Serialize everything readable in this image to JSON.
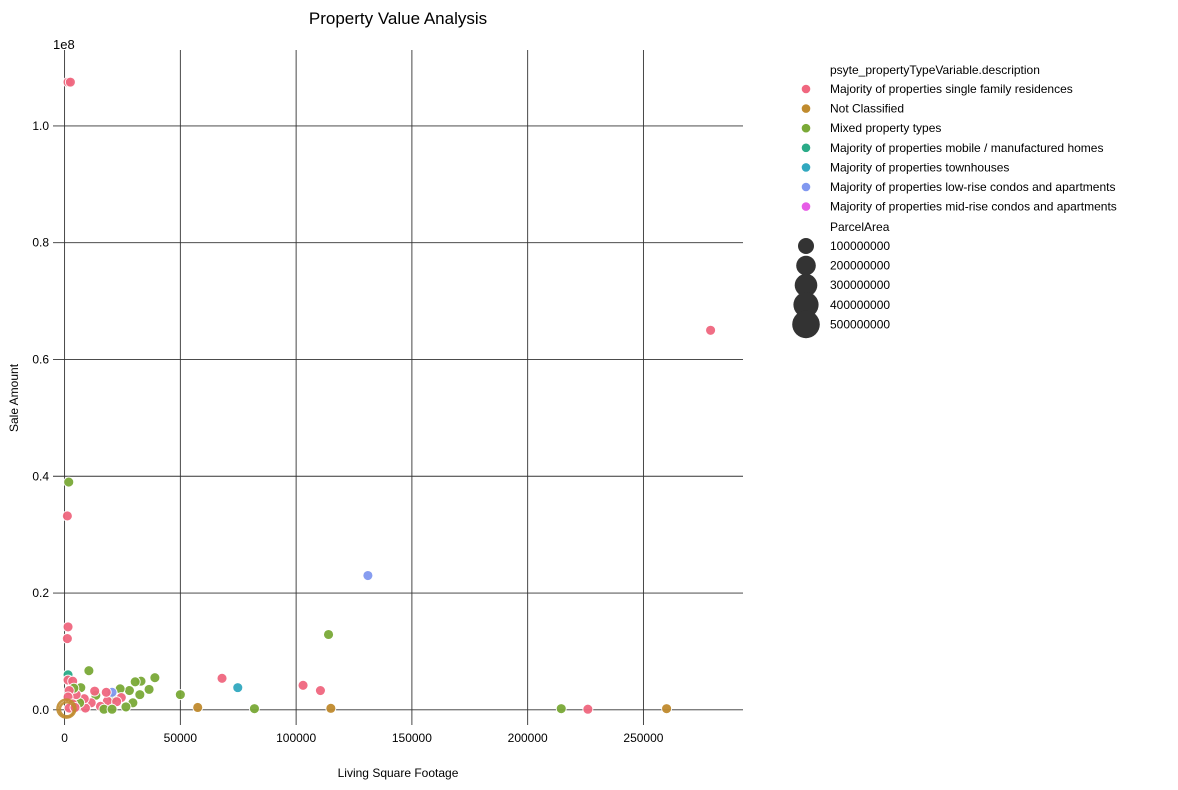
{
  "chart_data": {
    "type": "scatter",
    "title": "Property Value Analysis",
    "xlabel": "Living Square Footage",
    "ylabel": "Sale Amount",
    "y_offset_label": "1e8",
    "xlim": [
      -5000,
      293000
    ],
    "ylim": [
      -2600000,
      113000000
    ],
    "x_ticks": [
      0,
      50000,
      100000,
      150000,
      200000,
      250000
    ],
    "x_tick_labels": [
      "0",
      "50000",
      "100000",
      "150000",
      "200000",
      "250000"
    ],
    "y_ticks": [
      0,
      20000000,
      40000000,
      60000000,
      80000000,
      100000000
    ],
    "y_tick_labels": [
      "0.0",
      "0.2",
      "0.4",
      "0.6",
      "0.8",
      "1.0"
    ],
    "grid": true,
    "legend_placement": "outside-right",
    "hue_title": "psyte_propertyTypeVariable.description",
    "size_title": "ParcelArea",
    "categories": [
      {
        "name": "Majority of properties single family residences",
        "color": "#f0677f"
      },
      {
        "name": "Not Classified",
        "color": "#c08b2e"
      },
      {
        "name": "Mixed property types",
        "color": "#7aa937"
      },
      {
        "name": "Majority of properties mobile / manufactured homes",
        "color": "#2aab88"
      },
      {
        "name": "Majority of properties townhouses",
        "color": "#31a8bf"
      },
      {
        "name": "Majority of properties low-rise condos and apartments",
        "color": "#8198f0"
      },
      {
        "name": "Majority of properties mid-rise condos and apartments",
        "color": "#e65ce6"
      }
    ],
    "size_legend": [
      {
        "label": "100000000",
        "value": 100000000
      },
      {
        "label": "200000000",
        "value": 200000000
      },
      {
        "label": "300000000",
        "value": 300000000
      },
      {
        "label": "400000000",
        "value": 400000000
      },
      {
        "label": "500000000",
        "value": 500000000
      }
    ],
    "points": [
      {
        "x": 1500,
        "y": 107500000,
        "cat": 0
      },
      {
        "x": 2500,
        "y": 107500000,
        "cat": 0
      },
      {
        "x": 279000,
        "y": 65000000,
        "cat": 0
      },
      {
        "x": 1800,
        "y": 39000000,
        "cat": 2
      },
      {
        "x": 1200,
        "y": 33200000,
        "cat": 0
      },
      {
        "x": 1500,
        "y": 14200000,
        "cat": 0
      },
      {
        "x": 1200,
        "y": 12200000,
        "cat": 0
      },
      {
        "x": 131000,
        "y": 23000000,
        "cat": 5
      },
      {
        "x": 114000,
        "y": 12900000,
        "cat": 2
      },
      {
        "x": 1500,
        "y": 6000000,
        "cat": 3
      },
      {
        "x": 1500,
        "y": 5100000,
        "cat": 0
      },
      {
        "x": 3500,
        "y": 4900000,
        "cat": 0
      },
      {
        "x": 68000,
        "y": 5400000,
        "cat": 0
      },
      {
        "x": 74800,
        "y": 3800000,
        "cat": 4
      },
      {
        "x": 103000,
        "y": 4200000,
        "cat": 0
      },
      {
        "x": 110500,
        "y": 3300000,
        "cat": 0
      },
      {
        "x": 10500,
        "y": 6700000,
        "cat": 2
      },
      {
        "x": 39000,
        "y": 5500000,
        "cat": 2
      },
      {
        "x": 33000,
        "y": 4900000,
        "cat": 2
      },
      {
        "x": 30500,
        "y": 4800000,
        "cat": 2
      },
      {
        "x": 36500,
        "y": 3500000,
        "cat": 2
      },
      {
        "x": 28000,
        "y": 3300000,
        "cat": 2
      },
      {
        "x": 24000,
        "y": 3600000,
        "cat": 2
      },
      {
        "x": 32500,
        "y": 2600000,
        "cat": 2
      },
      {
        "x": 50000,
        "y": 2600000,
        "cat": 2
      },
      {
        "x": 29500,
        "y": 1200000,
        "cat": 2
      },
      {
        "x": 26500,
        "y": 500000,
        "cat": 2
      },
      {
        "x": 21000,
        "y": 2000000,
        "cat": 2
      },
      {
        "x": 24500,
        "y": 2100000,
        "cat": 0
      },
      {
        "x": 18500,
        "y": 1500000,
        "cat": 0
      },
      {
        "x": 22500,
        "y": 1400000,
        "cat": 0
      },
      {
        "x": 20500,
        "y": 3000000,
        "cat": 5
      },
      {
        "x": 18000,
        "y": 3000000,
        "cat": 0
      },
      {
        "x": 15500,
        "y": 600000,
        "cat": 0
      },
      {
        "x": 13500,
        "y": 2500000,
        "cat": 2
      },
      {
        "x": 13000,
        "y": 3200000,
        "cat": 0
      },
      {
        "x": 11500,
        "y": 1200000,
        "cat": 0
      },
      {
        "x": 9000,
        "y": 300000,
        "cat": 0
      },
      {
        "x": 7000,
        "y": 3800000,
        "cat": 2
      },
      {
        "x": 8500,
        "y": 1900000,
        "cat": 0
      },
      {
        "x": 6500,
        "y": 1200000,
        "cat": 2
      },
      {
        "x": 5000,
        "y": 2600000,
        "cat": 0
      },
      {
        "x": 4000,
        "y": 3700000,
        "cat": 2
      },
      {
        "x": 2000,
        "y": 3300000,
        "cat": 0
      },
      {
        "x": 1500,
        "y": 2200000,
        "cat": 0
      },
      {
        "x": 3500,
        "y": 1000000,
        "cat": 0
      },
      {
        "x": 2000,
        "y": 300000,
        "cat": 0
      },
      {
        "x": 4500,
        "y": 400000,
        "cat": 0
      },
      {
        "x": 17000,
        "y": 100000,
        "cat": 2
      },
      {
        "x": 20500,
        "y": 100000,
        "cat": 2
      },
      {
        "x": 57500,
        "y": 400000,
        "cat": 1
      },
      {
        "x": 82000,
        "y": 200000,
        "cat": 2
      },
      {
        "x": 115000,
        "y": 250000,
        "cat": 1
      },
      {
        "x": 214500,
        "y": 200000,
        "cat": 2
      },
      {
        "x": 226000,
        "y": 100000,
        "cat": 0
      },
      {
        "x": 260000,
        "y": 200000,
        "cat": 1
      },
      {
        "x": 1000,
        "y": 100000,
        "cat": 1,
        "s": 100000000
      },
      {
        "x": 800,
        "y": 200000,
        "cat": 1,
        "s": 220000000
      }
    ]
  }
}
